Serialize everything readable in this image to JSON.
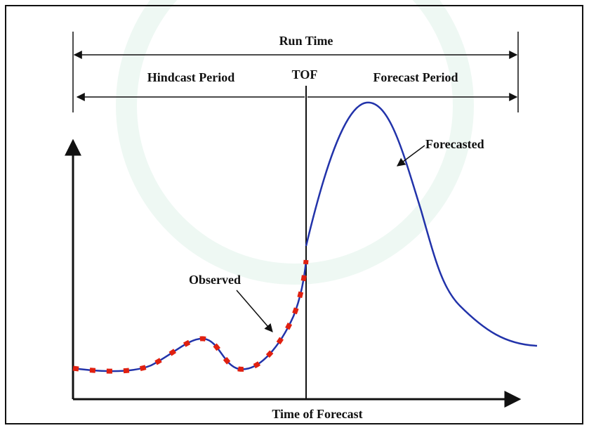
{
  "labels": {
    "run_time": "Run Time",
    "hindcast": "Hindcast Period",
    "tof": "TOF",
    "forecast": "Forecast Period",
    "forecasted": "Forecasted",
    "observed": "Observed",
    "time_of_forecast": "Time of Forecast"
  }
}
